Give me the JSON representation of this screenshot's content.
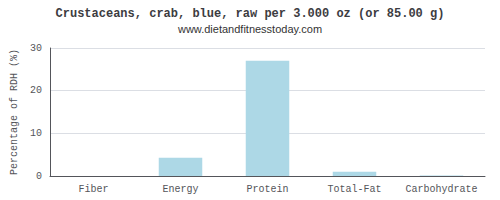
{
  "chart_data": {
    "type": "bar",
    "title": "Crustaceans, crab, blue, raw per 3.000 oz (or 85.00 g)",
    "subtitle": "www.dietandfitnesstoday.com",
    "categories": [
      "Fiber",
      "Energy",
      "Protein",
      "Total-Fat",
      "Carbohydrate"
    ],
    "values": [
      0,
      4.3,
      27.0,
      1.0,
      0.1
    ],
    "color": "#add8e6",
    "ylabel": "Percentage of RDH (%)",
    "ylim": [
      0,
      30
    ],
    "yticks": [
      0,
      10,
      20,
      30
    ],
    "grid": true
  }
}
